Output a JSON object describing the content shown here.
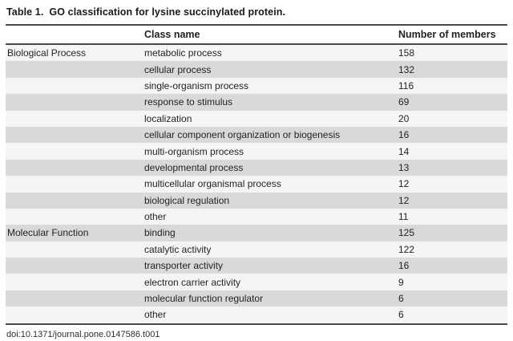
{
  "table": {
    "title_label": "Table 1.",
    "title_text": "GO classification for lysine succinylated protein.",
    "header": {
      "group": "",
      "class_name": "Class name",
      "members": "Number of members"
    },
    "groups": [
      {
        "name": "Biological Process",
        "rows": [
          {
            "class_name": "metabolic process",
            "members": "158"
          },
          {
            "class_name": "cellular process",
            "members": "132"
          },
          {
            "class_name": "single-organism process",
            "members": "116"
          },
          {
            "class_name": "response to stimulus",
            "members": "69"
          },
          {
            "class_name": "localization",
            "members": "20"
          },
          {
            "class_name": "cellular component organization or biogenesis",
            "members": "16"
          },
          {
            "class_name": "multi-organism process",
            "members": "14"
          },
          {
            "class_name": "developmental process",
            "members": "13"
          },
          {
            "class_name": "multicellular organismal process",
            "members": "12"
          },
          {
            "class_name": "biological regulation",
            "members": "12"
          },
          {
            "class_name": "other",
            "members": "11"
          }
        ]
      },
      {
        "name": "Molecular Function",
        "rows": [
          {
            "class_name": "binding",
            "members": "125"
          },
          {
            "class_name": "catalytic activity",
            "members": "122"
          },
          {
            "class_name": "transporter activity",
            "members": "16"
          },
          {
            "class_name": "electron carrier activity",
            "members": "9"
          },
          {
            "class_name": "molecular function regulator",
            "members": "6"
          },
          {
            "class_name": "other",
            "members": "6"
          }
        ]
      }
    ],
    "doi": "doi:10.1371/journal.pone.0147586.t001"
  },
  "colors": {
    "stripe_dark": "#d9d9d9",
    "stripe_light": "#f5f5f5",
    "rule": "#4a4a4a"
  }
}
